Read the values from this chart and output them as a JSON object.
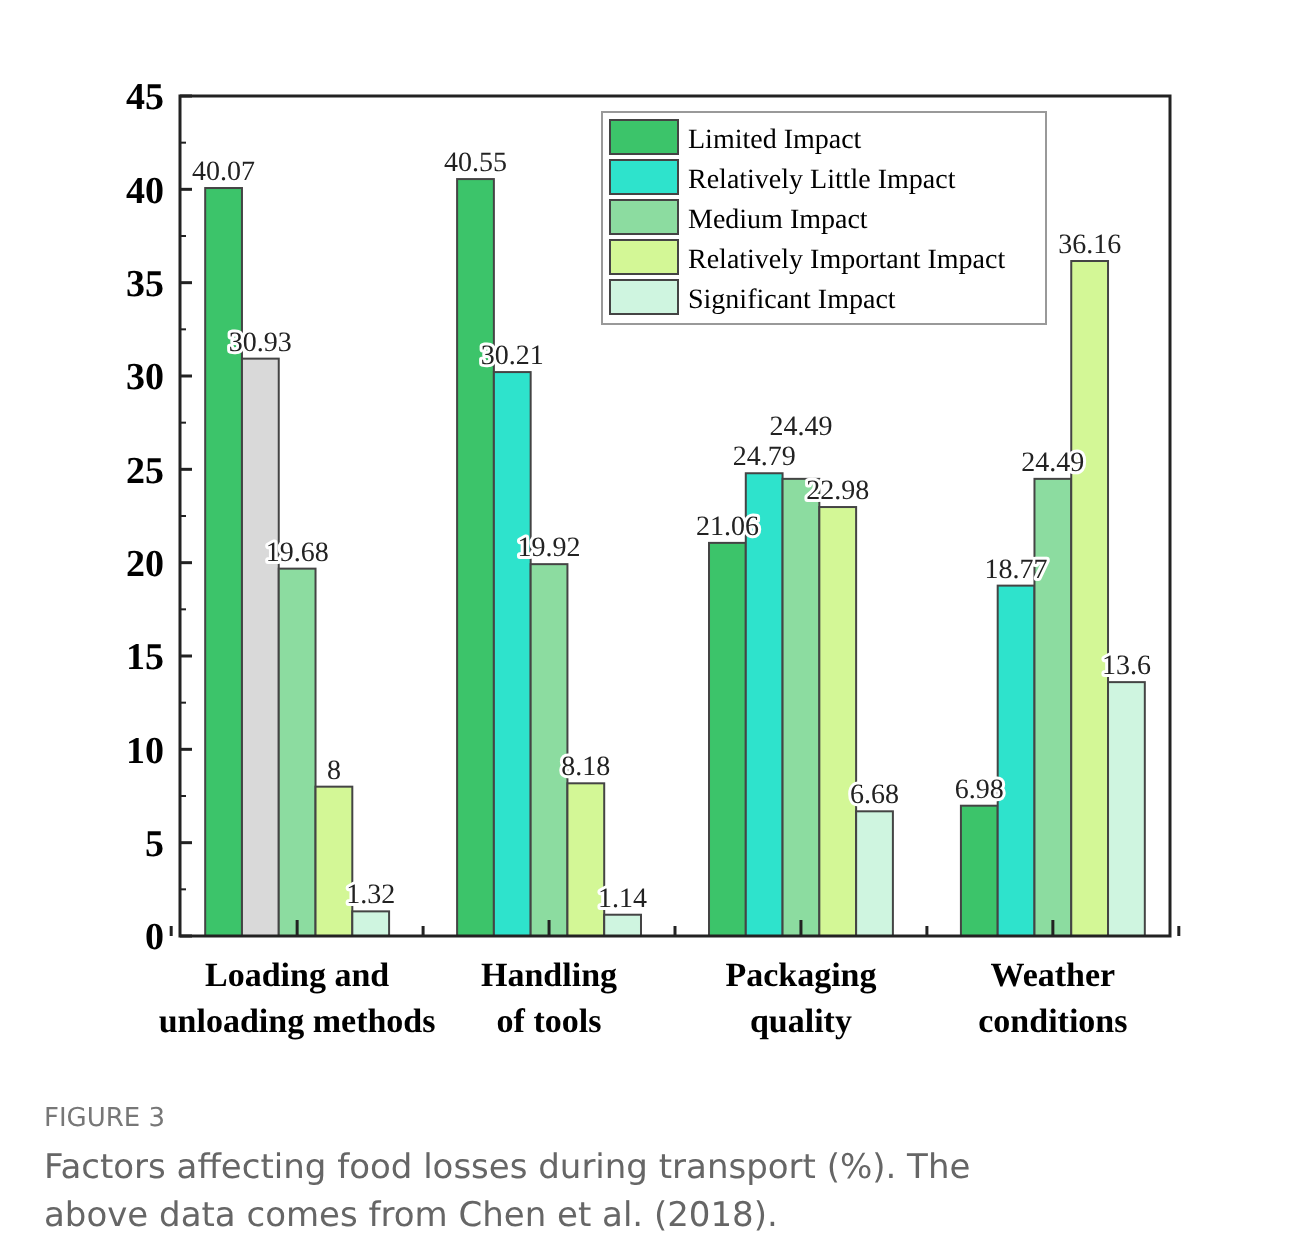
{
  "chart_data": {
    "type": "bar",
    "categories": [
      "Loading and\nunloading methods",
      "Handling\nof tools",
      "Packaging\nquality",
      "Weather\nconditions"
    ],
    "series": [
      {
        "name": "Limited Impact",
        "color": "#3cc46a",
        "values": [
          40.07,
          40.55,
          21.06,
          6.98
        ]
      },
      {
        "name": "Relatively Little Impact",
        "color": "#2ee3cc",
        "colors": [
          "#d9d9d9",
          "#2ee3cc",
          "#2ee3cc",
          "#2ee3cc"
        ],
        "values": [
          30.93,
          30.21,
          24.79,
          18.77
        ]
      },
      {
        "name": "Medium Impact",
        "color": "#8cdca0",
        "values": [
          19.68,
          19.92,
          24.49,
          24.49
        ]
      },
      {
        "name": "Relatively Important Impact",
        "color": "#d3f796",
        "values": [
          8,
          8.18,
          22.98,
          36.16
        ]
      },
      {
        "name": "Significant Impact",
        "color": "#cff5e0",
        "values": [
          1.32,
          1.14,
          6.68,
          13.6
        ]
      }
    ],
    "ylim": [
      0,
      45
    ],
    "yticks": [
      0,
      5,
      10,
      15,
      20,
      25,
      30,
      35,
      40,
      45
    ],
    "data_labels": true,
    "legend": "top right",
    "grid": false,
    "annotations": [
      "FIGURE 3",
      "Factors affecting food losses during transport (%). The above data comes from Chen et al. (2018)."
    ]
  }
}
